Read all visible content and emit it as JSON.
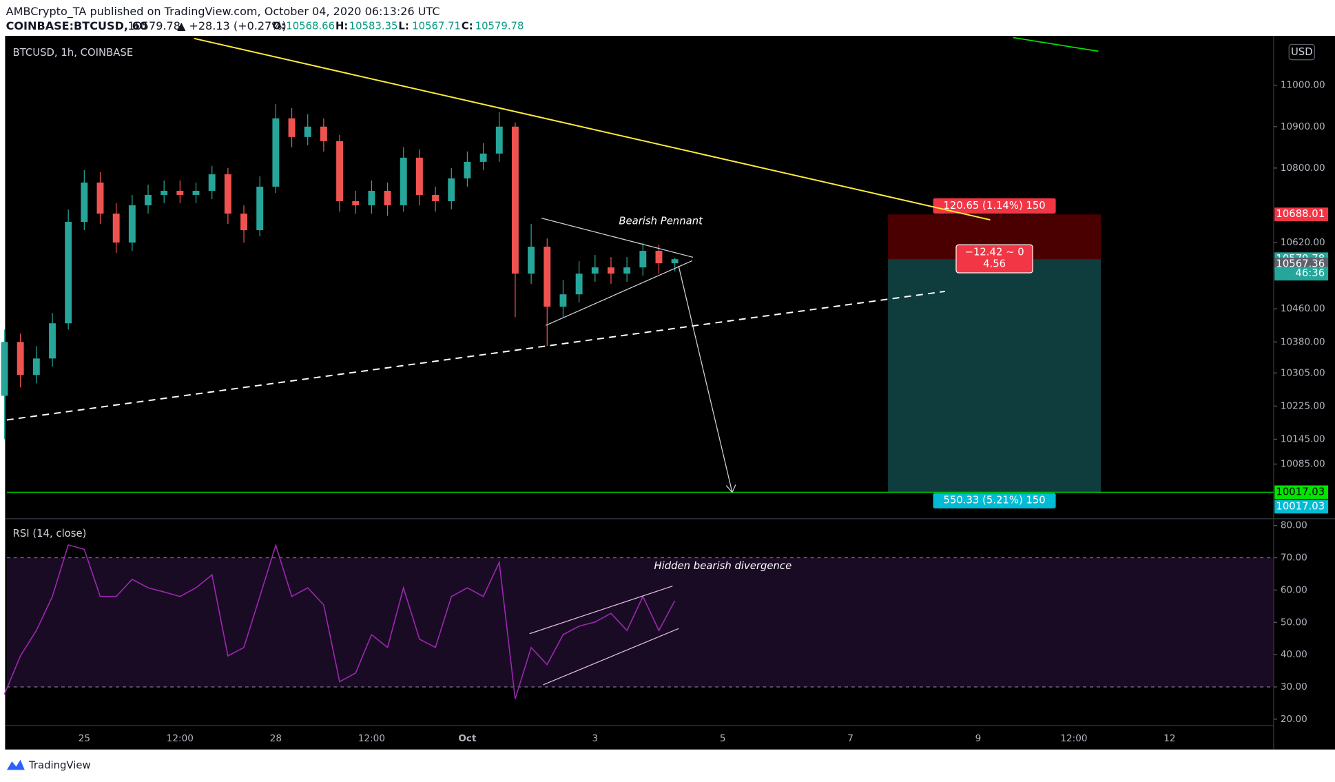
{
  "header": {
    "publisher": "AMBCrypto_TA published on TradingView.com, October 04, 2020 06:13:26 UTC",
    "symbol": "COINBASE:BTCUSD, 60",
    "last": "10579.78",
    "arrow": "▲",
    "change": "+28.13 (+0.27%)",
    "ohlc": [
      {
        "label": "O:",
        "value": "10568.66"
      },
      {
        "label": "H:",
        "value": "10583.35"
      },
      {
        "label": "L:",
        "value": "10567.71"
      },
      {
        "label": "C:",
        "value": "10579.78"
      }
    ]
  },
  "footer": {
    "brand": "TradingView"
  },
  "chart_data": [
    {
      "type": "candlestick",
      "title": "BTCUSD, 1h, COINBASE",
      "currency": "USD",
      "up_color": "#26a69a",
      "down_color": "#ef5350",
      "x": [
        "2020-09-23 18:00",
        "2020-09-24 00:00",
        "2020-09-24 06:00",
        "2020-09-24 12:00",
        "2020-09-24 18:00",
        "2020-09-25 00:00",
        "2020-09-25 06:00",
        "2020-09-25 12:00",
        "2020-09-25 18:00",
        "2020-09-26 00:00",
        "2020-09-26 06:00",
        "2020-09-26 12:00",
        "2020-09-26 18:00",
        "2020-09-27 00:00",
        "2020-09-27 06:00",
        "2020-09-27 12:00",
        "2020-09-27 18:00",
        "2020-09-28 00:00",
        "2020-09-28 06:00",
        "2020-09-28 12:00",
        "2020-09-28 18:00",
        "2020-09-29 00:00",
        "2020-09-29 06:00",
        "2020-09-29 12:00",
        "2020-09-29 18:00",
        "2020-09-30 00:00",
        "2020-09-30 06:00",
        "2020-09-30 12:00",
        "2020-09-30 18:00",
        "2020-10-01 00:00",
        "2020-10-01 06:00",
        "2020-10-01 12:00",
        "2020-10-01 18:00",
        "2020-10-02 00:00",
        "2020-10-02 06:00",
        "2020-10-02 12:00",
        "2020-10-02 18:00",
        "2020-10-03 00:00",
        "2020-10-03 06:00",
        "2020-10-03 12:00",
        "2020-10-03 18:00",
        "2020-10-04 00:00",
        "2020-10-04 06:00"
      ],
      "open": [
        10250,
        10380,
        10300,
        10340,
        10425,
        10670,
        10765,
        10690,
        10620,
        10710,
        10735,
        10745,
        10735,
        10745,
        10785,
        10690,
        10650,
        10755,
        10920,
        10875,
        10900,
        10865,
        10720,
        10710,
        10745,
        10710,
        10825,
        10735,
        10720,
        10775,
        10815,
        10835,
        10900,
        10545,
        10610,
        10465,
        10495,
        10545,
        10560,
        10545,
        10560,
        10600,
        10570
      ],
      "high": [
        10410,
        10400,
        10370,
        10450,
        10700,
        10795,
        10790,
        10715,
        10735,
        10760,
        10770,
        10770,
        10765,
        10805,
        10800,
        10710,
        10780,
        10955,
        10945,
        10930,
        10920,
        10880,
        10745,
        10770,
        10765,
        10850,
        10845,
        10755,
        10800,
        10840,
        10860,
        10935,
        10910,
        10665,
        10630,
        10530,
        10575,
        10590,
        10585,
        10585,
        10620,
        10615,
        10583.35
      ],
      "low": [
        10145,
        10270,
        10280,
        10320,
        10410,
        10650,
        10665,
        10595,
        10600,
        10690,
        10715,
        10715,
        10715,
        10725,
        10665,
        10620,
        10635,
        10740,
        10850,
        10855,
        10840,
        10695,
        10690,
        10690,
        10685,
        10695,
        10710,
        10695,
        10700,
        10755,
        10795,
        10815,
        10440,
        10520,
        10370,
        10440,
        10475,
        10525,
        10520,
        10525,
        10540,
        10545,
        10550
      ],
      "close": [
        10380,
        10300,
        10340,
        10425,
        10670,
        10765,
        10690,
        10620,
        10710,
        10735,
        10745,
        10735,
        10745,
        10785,
        10690,
        10650,
        10755,
        10920,
        10875,
        10900,
        10865,
        10720,
        10710,
        10745,
        10710,
        10825,
        10735,
        10720,
        10775,
        10815,
        10835,
        10900,
        10545,
        10610,
        10465,
        10495,
        10545,
        10560,
        10545,
        10560,
        10600,
        10570,
        10579.78
      ],
      "xlim": [
        "2020-09-23 18:53",
        "2020-10-13 15:07"
      ],
      "xticks": [
        {
          "value": "2020-09-25 00:00",
          "label": "25"
        },
        {
          "value": "2020-09-26 12:00",
          "label": "12:00"
        },
        {
          "value": "2020-09-28 00:00",
          "label": "28"
        },
        {
          "value": "2020-09-29 12:00",
          "label": "12:00"
        },
        {
          "value": "2020-10-01 00:00",
          "label": "Oct"
        },
        {
          "value": "2020-10-03 00:00",
          "label": "3"
        },
        {
          "value": "2020-10-05 00:00",
          "label": "5"
        },
        {
          "value": "2020-10-07 00:00",
          "label": "7"
        },
        {
          "value": "2020-10-09 00:00",
          "label": "9"
        },
        {
          "value": "2020-10-10 12:00",
          "label": "12:00"
        },
        {
          "value": "2020-10-12 00:00",
          "label": "12"
        }
      ],
      "ylim": [
        9955,
        11113
      ],
      "yticks": [
        {
          "value": 11000,
          "label": "11000.00"
        },
        {
          "value": 10900,
          "label": "10900.00"
        },
        {
          "value": 10800,
          "label": "10800.00"
        },
        {
          "value": 10620,
          "label": "10620.00"
        },
        {
          "value": 10460,
          "label": "10460.00"
        },
        {
          "value": 10380,
          "label": "10380.00"
        },
        {
          "value": 10305,
          "label": "10305.00"
        },
        {
          "value": 10225,
          "label": "10225.00"
        },
        {
          "value": 10145,
          "label": "10145.00"
        },
        {
          "value": 10085,
          "label": "10085.00"
        }
      ],
      "price_labels": [
        {
          "value": 10688.01,
          "color": "#f23645"
        },
        {
          "value": 10579.78,
          "color": "#26a69a"
        },
        {
          "value": 10567.36,
          "color": "#5d606b"
        },
        {
          "value": 10017.03,
          "color": "#00e400"
        },
        {
          "value": 10017.03,
          "color": "#00bcd4"
        }
      ],
      "countdown": "46:36",
      "annotations": {
        "pattern": "Bearish Pennant",
        "stop": "120.65 (1.14%) 150",
        "ratio": "−12.42 ~ 0",
        "ratio_value": "4.56",
        "target": "550.33 (5.21%) 150"
      }
    },
    {
      "type": "line",
      "title": "RSI (14, close)",
      "color": "#9c27b0",
      "values": [
        27.7,
        39.6,
        47.5,
        58,
        74,
        72.6,
        58,
        58,
        63.3,
        60.7,
        59.4,
        58,
        60.7,
        64.7,
        39.6,
        42.2,
        58,
        73.9,
        58,
        60.7,
        55.4,
        31.6,
        34.3,
        46.2,
        42.2,
        60.7,
        44.8,
        42.2,
        58,
        60.7,
        58,
        68.6,
        26.3,
        42.2,
        36.9,
        46.2,
        48.8,
        50.1,
        52.8,
        47.5,
        58,
        47.5,
        56.7
      ],
      "ylim": [
        18,
        81.3
      ],
      "yticks": [
        {
          "value": 80,
          "label": "80.00"
        },
        {
          "value": 70,
          "label": "70.00"
        },
        {
          "value": 60,
          "label": "60.00"
        },
        {
          "value": 50,
          "label": "50.00"
        },
        {
          "value": 40,
          "label": "40.00"
        },
        {
          "value": 30,
          "label": "30.00"
        },
        {
          "value": 20,
          "label": "20.00"
        }
      ],
      "bands": [
        30,
        70
      ],
      "annotation": "Hidden bearish divergence"
    }
  ]
}
